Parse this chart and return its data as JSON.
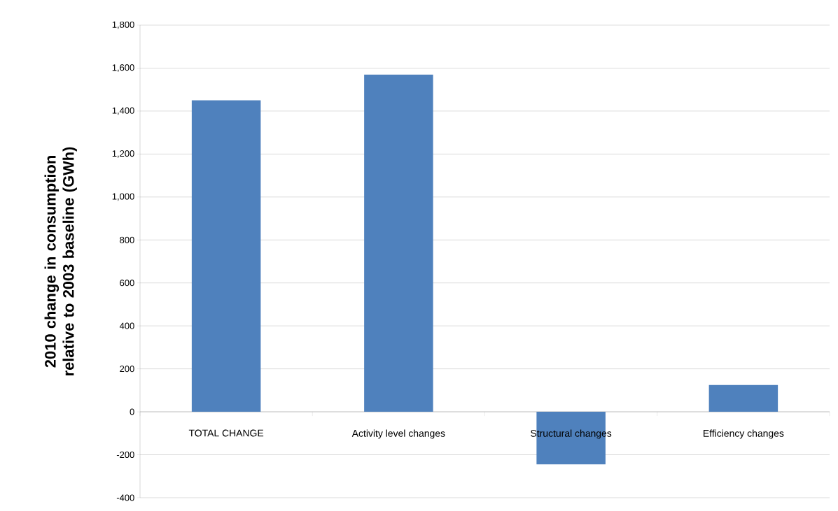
{
  "chart_data": {
    "type": "bar",
    "ylabel": "2010 change in consumption relative to 2003 baseline (GWh)",
    "categories": [
      "TOTAL CHANGE",
      "Activity level changes",
      "Structural changes",
      "Efficiency changes"
    ],
    "values": [
      1450,
      1570,
      -245,
      125
    ],
    "color": "#4f81bd",
    "ylim": [
      -400,
      1800
    ],
    "yticks": [
      -400,
      -200,
      0,
      200,
      400,
      600,
      800,
      {
        "value": 1000,
        "label": "1,000"
      },
      {
        "value": 1200,
        "label": "1,200"
      },
      {
        "value": 1400,
        "label": "1,400"
      },
      {
        "value": 1600,
        "label": "1,600"
      },
      {
        "value": 1800,
        "label": "1,800"
      }
    ],
    "grid": "y"
  }
}
